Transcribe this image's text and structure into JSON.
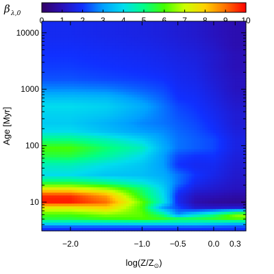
{
  "chart_data": {
    "type": "heatmap",
    "colorbar": {
      "title_main": "β",
      "title_sub": "λ,0",
      "min": 0,
      "max": 10,
      "ticks": [
        0,
        1,
        2,
        3,
        4,
        5,
        6,
        7,
        8,
        9,
        10
      ],
      "colors": [
        {
          "v": 0,
          "c": "#330066"
        },
        {
          "v": 1,
          "c": "#2a10b8"
        },
        {
          "v": 2,
          "c": "#1030ff"
        },
        {
          "v": 3,
          "c": "#00a0ff"
        },
        {
          "v": 4,
          "c": "#00ddee"
        },
        {
          "v": 5,
          "c": "#00ff88"
        },
        {
          "v": 6,
          "c": "#44ff00"
        },
        {
          "v": 7,
          "c": "#ccff00"
        },
        {
          "v": 8,
          "c": "#ffd000"
        },
        {
          "v": 9,
          "c": "#ff7000"
        },
        {
          "v": 10,
          "c": "#ff0000"
        }
      ]
    },
    "x_axis": {
      "label_main": "log(Z/Z",
      "label_sub": "⊙",
      "label_close": ")",
      "range": [
        -2.4,
        0.45
      ],
      "scale": "linear",
      "ticks": [
        {
          "value": -2.0,
          "label": "−2.0"
        },
        {
          "value": -1.0,
          "label": "−1.0"
        },
        {
          "value": -0.5,
          "label": "−0.5"
        },
        {
          "value": 0.0,
          "label": "0.0"
        },
        {
          "value": 0.3,
          "label": "0.3"
        }
      ]
    },
    "y_axis": {
      "label": "Age [Myr]",
      "range_myr": [
        3.1,
        16000
      ],
      "scale": "log",
      "ticks": [
        {
          "value": 10,
          "label": "10"
        },
        {
          "value": 100,
          "label": "100"
        },
        {
          "value": 1000,
          "label": "1000"
        },
        {
          "value": 10000,
          "label": "10000"
        }
      ]
    },
    "grid": false,
    "age_myr": [
      3.5,
      4,
      5,
      6,
      8,
      10,
      13,
      17,
      22,
      30,
      45,
      65,
      90,
      130,
      180,
      250,
      350,
      500,
      700,
      1000,
      1500,
      2500,
      4000,
      6000,
      9000,
      14000
    ],
    "log_z": [
      -2.4,
      -2.0,
      -1.5,
      -1.0,
      -0.7,
      -0.5,
      -0.25,
      0.0,
      0.3,
      0.45
    ],
    "beta": [
      [
        2.0,
        2.0,
        2.0,
        2.0,
        2.0,
        2.0,
        2.0,
        2.0,
        2.0,
        2.0
      ],
      [
        3.5,
        3.5,
        3.5,
        3.5,
        3.5,
        3.5,
        3.5,
        3.3,
        3.0,
        3.0
      ],
      [
        5.5,
        5.5,
        5.8,
        6.0,
        5.8,
        5.6,
        5.5,
        5.7,
        6.0,
        6.0
      ],
      [
        6.0,
        6.0,
        6.5,
        6.2,
        5.0,
        2.8,
        4.0,
        5.0,
        6.5,
        6.8
      ],
      [
        7.5,
        7.5,
        8.0,
        6.0,
        3.0,
        2.2,
        1.3,
        1.2,
        1.3,
        1.3
      ],
      [
        9.8,
        9.8,
        9.0,
        6.2,
        4.2,
        1.8,
        0.9,
        0.7,
        0.6,
        0.6
      ],
      [
        9.6,
        9.6,
        8.5,
        5.5,
        4.0,
        1.8,
        1.1,
        1.0,
        0.8,
        0.8
      ],
      [
        7.5,
        7.5,
        6.8,
        5.2,
        3.8,
        2.2,
        1.5,
        1.3,
        1.1,
        1.1
      ],
      [
        5.5,
        5.5,
        5.0,
        4.2,
        3.5,
        2.6,
        1.8,
        1.5,
        1.2,
        1.2
      ],
      [
        4.0,
        4.0,
        3.6,
        3.5,
        3.2,
        2.6,
        2.0,
        1.7,
        1.3,
        1.3
      ],
      [
        4.5,
        4.5,
        4.0,
        3.6,
        3.0,
        2.0,
        1.8,
        1.8,
        1.4,
        1.4
      ],
      [
        5.5,
        5.5,
        4.8,
        4.0,
        3.0,
        2.2,
        2.0,
        2.0,
        1.5,
        1.5
      ],
      [
        6.0,
        6.0,
        5.2,
        4.5,
        3.2,
        2.6,
        2.4,
        2.2,
        1.6,
        1.6
      ],
      [
        5.0,
        5.0,
        4.5,
        3.8,
        3.0,
        2.6,
        2.4,
        2.2,
        1.6,
        1.6
      ],
      [
        4.0,
        4.0,
        3.5,
        3.0,
        2.8,
        2.5,
        2.3,
        2.0,
        1.5,
        1.5
      ],
      [
        3.7,
        3.7,
        3.3,
        2.8,
        2.6,
        2.4,
        2.2,
        1.9,
        1.4,
        1.4
      ],
      [
        3.8,
        3.8,
        3.6,
        3.0,
        2.6,
        2.3,
        2.1,
        1.8,
        1.4,
        1.4
      ],
      [
        4.0,
        4.0,
        3.8,
        3.2,
        2.6,
        2.2,
        2.0,
        1.7,
        1.3,
        1.3
      ],
      [
        3.5,
        3.5,
        3.4,
        2.8,
        2.4,
        2.0,
        1.9,
        1.6,
        1.2,
        1.2
      ],
      [
        2.8,
        2.8,
        2.7,
        2.4,
        2.2,
        1.9,
        1.8,
        1.5,
        1.1,
        1.1
      ],
      [
        2.3,
        2.3,
        2.2,
        2.1,
        2.0,
        1.8,
        1.7,
        1.4,
        1.1,
        1.1
      ],
      [
        2.1,
        2.1,
        2.0,
        1.9,
        1.8,
        1.7,
        1.6,
        1.3,
        1.0,
        1.0
      ],
      [
        2.0,
        2.0,
        1.9,
        1.8,
        1.7,
        1.6,
        1.5,
        1.3,
        1.0,
        1.0
      ],
      [
        1.9,
        1.9,
        1.8,
        1.7,
        1.6,
        1.5,
        1.4,
        1.2,
        0.9,
        0.9
      ],
      [
        1.8,
        1.8,
        1.7,
        1.6,
        1.5,
        1.4,
        1.3,
        1.1,
        0.9,
        0.9
      ],
      [
        1.8,
        1.8,
        1.7,
        1.6,
        1.5,
        1.4,
        1.3,
        1.1,
        0.9,
        0.9
      ]
    ]
  }
}
